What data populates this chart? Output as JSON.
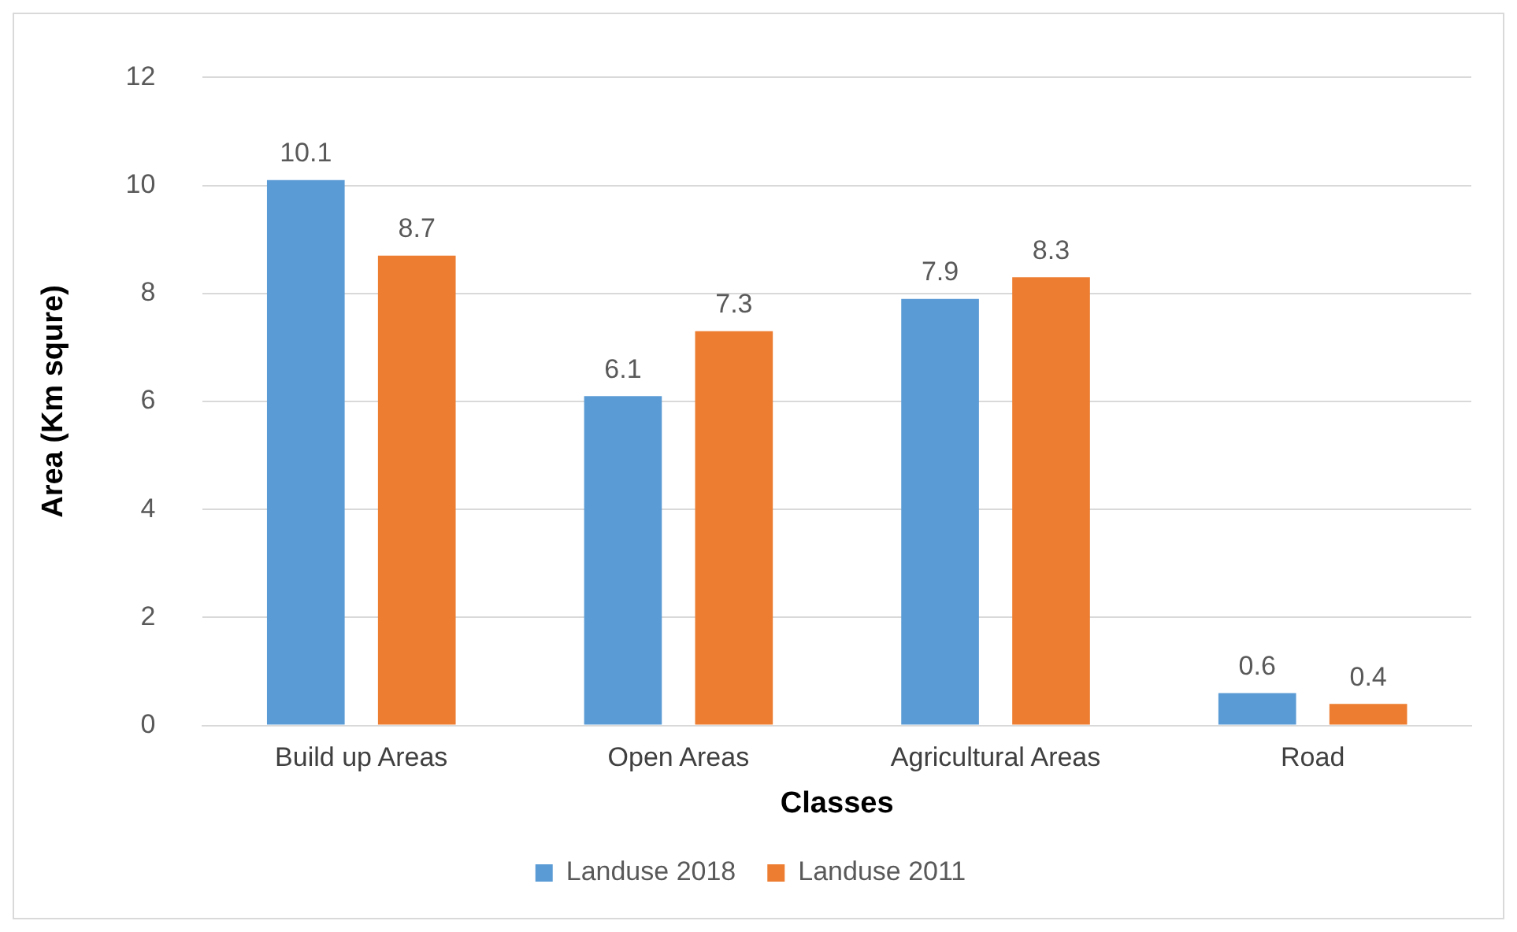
{
  "chart_data": {
    "type": "bar",
    "xlabel": "Classes",
    "ylabel": "Area (Km squre)",
    "categories": [
      "Build up Areas",
      "Open Areas",
      "Agricultural Areas",
      "Road"
    ],
    "series": [
      {
        "name": "Landuse 2018",
        "color": "#5b9bd5",
        "values": [
          10.1,
          6.1,
          7.9,
          0.6
        ]
      },
      {
        "name": "Landuse 2011",
        "color": "#ed7d31",
        "values": [
          8.7,
          7.3,
          8.3,
          0.4
        ]
      }
    ],
    "ylim": [
      0,
      12
    ],
    "yticks": [
      0,
      2,
      4,
      6,
      8,
      10,
      12
    ],
    "grid": "y",
    "legend": "bottom",
    "data_labels": true
  }
}
